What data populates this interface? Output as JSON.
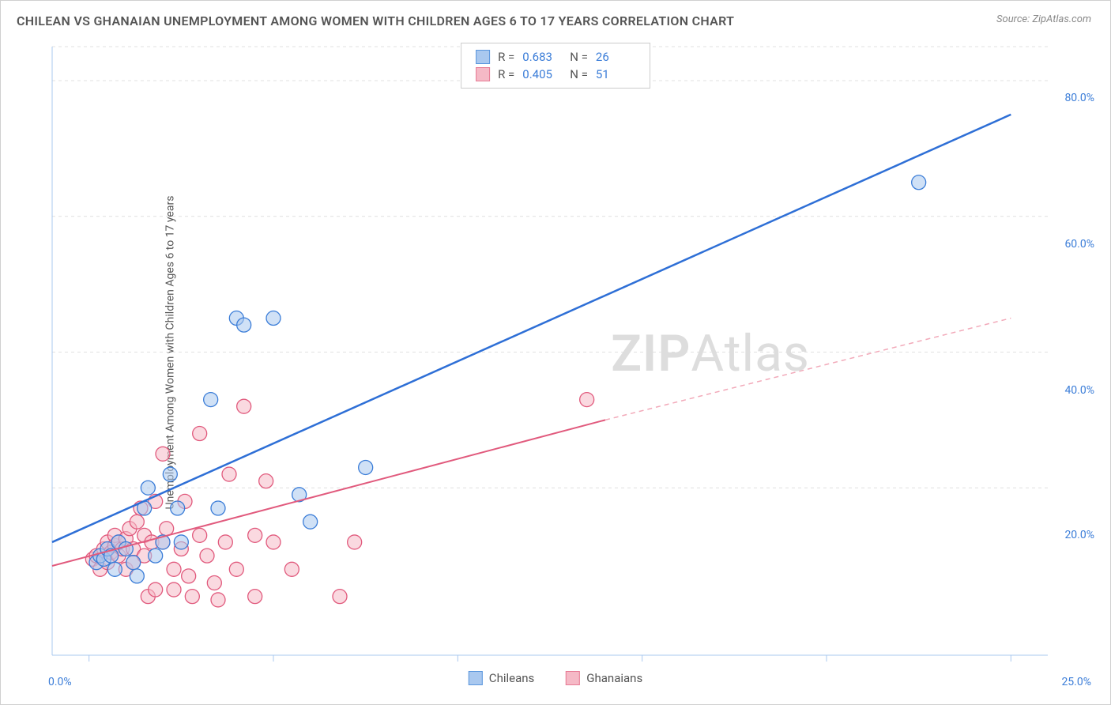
{
  "title": "CHILEAN VS GHANAIAN UNEMPLOYMENT AMONG WOMEN WITH CHILDREN AGES 6 TO 17 YEARS CORRELATION CHART",
  "source_label": "Source: ",
  "source_name": "ZipAtlas.com",
  "y_axis_label": "Unemployment Among Women with Children Ages 6 to 17 years",
  "watermark_bold": "ZIP",
  "watermark_light": "Atlas",
  "stats": {
    "series": [
      {
        "swatch_fill": "#a9c8ef",
        "swatch_border": "#5a96dd",
        "r_label": "R =",
        "r": "0.683",
        "n_label": "N =",
        "n": "26"
      },
      {
        "swatch_fill": "#f5b9c6",
        "swatch_border": "#e77b95",
        "r_label": "R =",
        "r": "0.405",
        "n_label": "N =",
        "n": "51"
      }
    ]
  },
  "legend": [
    {
      "label": "Chileans",
      "swatch_fill": "#a9c8ef",
      "swatch_border": "#5a96dd"
    },
    {
      "label": "Ghanaians",
      "swatch_fill": "#f5b9c6",
      "swatch_border": "#e77b95"
    }
  ],
  "chart": {
    "type": "scatter",
    "background_color": "#ffffff",
    "grid_color": "#e0e0e0",
    "axis_text_color": "#3b7dd8",
    "tick_color": "#a9c8ef",
    "xlim": [
      -1,
      26
    ],
    "ylim": [
      0,
      85
    ],
    "x_ticks": [
      0,
      5,
      10,
      15,
      20,
      25
    ],
    "x_tick_labels": [
      "0.0%",
      "",
      "",
      "",
      "",
      "25.0%"
    ],
    "y_ticks": [
      20,
      40,
      60,
      80
    ],
    "y_tick_labels": [
      "20.0%",
      "40.0%",
      "60.0%",
      "80.0%"
    ],
    "marker_radius": 9,
    "marker_opacity": 0.55,
    "series": [
      {
        "name": "Chileans",
        "color_fill": "#a9c8ef",
        "color_stroke": "#3b7dd8",
        "points": [
          [
            0.2,
            9
          ],
          [
            0.3,
            10
          ],
          [
            0.4,
            9.5
          ],
          [
            0.5,
            11
          ],
          [
            0.6,
            10
          ],
          [
            0.7,
            8
          ],
          [
            0.8,
            12
          ],
          [
            1.0,
            11
          ],
          [
            1.2,
            9
          ],
          [
            1.3,
            7
          ],
          [
            1.5,
            17
          ],
          [
            1.6,
            20
          ],
          [
            1.8,
            10
          ],
          [
            2.0,
            12
          ],
          [
            2.2,
            22
          ],
          [
            2.4,
            17
          ],
          [
            2.5,
            12
          ],
          [
            3.3,
            33
          ],
          [
            3.5,
            17
          ],
          [
            4.0,
            45
          ],
          [
            4.2,
            44
          ],
          [
            5.0,
            45
          ],
          [
            5.7,
            19
          ],
          [
            6.0,
            15
          ],
          [
            7.5,
            23
          ],
          [
            22.5,
            65
          ]
        ],
        "trend": {
          "x1": -1,
          "y1": 12,
          "x2": 25,
          "y2": 75,
          "line_color": "#2e6fd6",
          "line_width": 2.5,
          "dash": null
        }
      },
      {
        "name": "Ghanaians",
        "color_fill": "#f5b9c6",
        "color_stroke": "#e15a7d",
        "points": [
          [
            0.1,
            9.5
          ],
          [
            0.2,
            10
          ],
          [
            0.3,
            8
          ],
          [
            0.4,
            11
          ],
          [
            0.5,
            9
          ],
          [
            0.5,
            12
          ],
          [
            0.6,
            10.5
          ],
          [
            0.7,
            11.5
          ],
          [
            0.7,
            13
          ],
          [
            0.8,
            12
          ],
          [
            0.8,
            10
          ],
          [
            0.9,
            11
          ],
          [
            1.0,
            12.5
          ],
          [
            1.0,
            8
          ],
          [
            1.1,
            14
          ],
          [
            1.2,
            9
          ],
          [
            1.2,
            11
          ],
          [
            1.3,
            15
          ],
          [
            1.4,
            17
          ],
          [
            1.5,
            10
          ],
          [
            1.5,
            13
          ],
          [
            1.6,
            4
          ],
          [
            1.7,
            12
          ],
          [
            1.8,
            18
          ],
          [
            1.8,
            5
          ],
          [
            2.0,
            25
          ],
          [
            2.0,
            12
          ],
          [
            2.1,
            14
          ],
          [
            2.3,
            8
          ],
          [
            2.3,
            5
          ],
          [
            2.5,
            11
          ],
          [
            2.6,
            18
          ],
          [
            2.7,
            7
          ],
          [
            2.8,
            4
          ],
          [
            3.0,
            13
          ],
          [
            3.0,
            28
          ],
          [
            3.2,
            10
          ],
          [
            3.4,
            6
          ],
          [
            3.5,
            3.5
          ],
          [
            3.7,
            12
          ],
          [
            3.8,
            22
          ],
          [
            4.0,
            8
          ],
          [
            4.2,
            32
          ],
          [
            4.5,
            13
          ],
          [
            4.5,
            4
          ],
          [
            4.8,
            21
          ],
          [
            5.0,
            12
          ],
          [
            5.5,
            8
          ],
          [
            6.8,
            4
          ],
          [
            7.2,
            12
          ],
          [
            13.5,
            33
          ]
        ],
        "trend_solid": {
          "x1": -1,
          "y1": 8.5,
          "x2": 14,
          "y2": 30,
          "line_color": "#e15a7d",
          "line_width": 2
        },
        "trend_dash": {
          "x1": 14,
          "y1": 30,
          "x2": 25,
          "y2": 45,
          "line_color": "#f2a9b9",
          "line_width": 1.5
        }
      }
    ]
  }
}
